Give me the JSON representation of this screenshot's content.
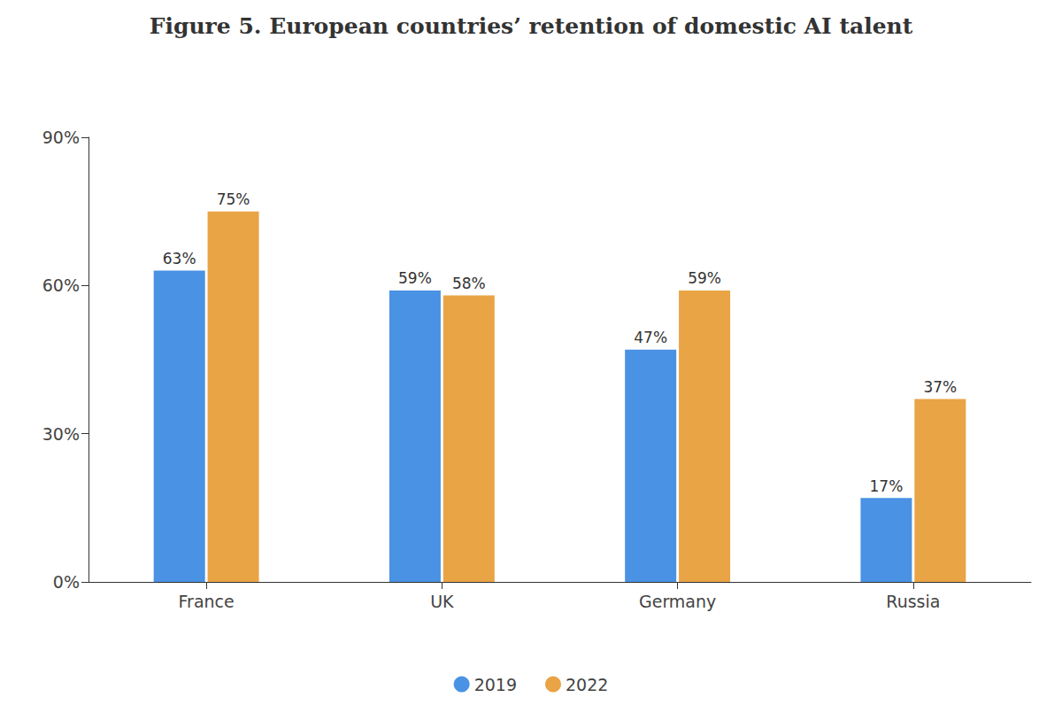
{
  "chart_data": {
    "type": "bar",
    "title": "Figure 5. European countries’ retention of domestic AI talent",
    "categories": [
      "France",
      "UK",
      "Germany",
      "Russia"
    ],
    "series": [
      {
        "name": "2019",
        "color": "#4a92e3",
        "values": [
          63,
          59,
          47,
          17
        ],
        "value_labels": [
          "63%",
          "59%",
          "47%",
          "17%"
        ]
      },
      {
        "name": "2022",
        "color": "#e9a446",
        "values": [
          75,
          58,
          59,
          37
        ],
        "value_labels": [
          "75%",
          "58%",
          "59%",
          "37%"
        ]
      }
    ],
    "ylim": [
      0,
      90
    ],
    "yticks": [
      {
        "value": 0,
        "label": "0%"
      },
      {
        "value": 30,
        "label": "30%"
      },
      {
        "value": 60,
        "label": "60%"
      },
      {
        "value": 90,
        "label": "90%"
      }
    ],
    "grid": false,
    "legend": "bottom",
    "data_labels": true
  }
}
